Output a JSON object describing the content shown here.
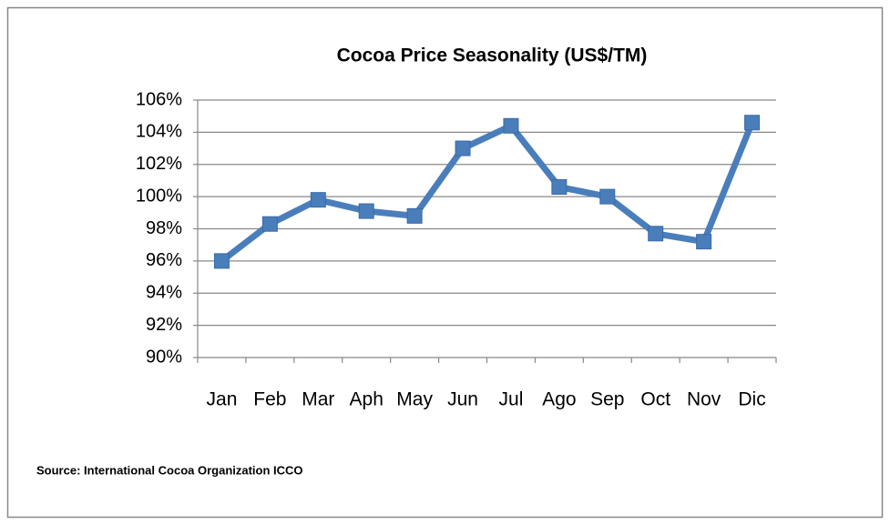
{
  "chart_data": {
    "type": "line",
    "title": "Cocoa Price Seasonality (US$/TM)",
    "source": "Source: International Cocoa Organization ICCO",
    "categories": [
      "Jan",
      "Feb",
      "Mar",
      "Aph",
      "May",
      "Jun",
      "Jul",
      "Ago",
      "Sep",
      "Oct",
      "Nov",
      "Dic"
    ],
    "values": [
      96.0,
      98.3,
      99.8,
      99.1,
      98.8,
      103.0,
      104.4,
      100.6,
      100.0,
      97.7,
      97.2,
      104.6
    ],
    "color": "#4a7ebb",
    "ylim": [
      90,
      106
    ],
    "yticks": [
      {
        "value": 90,
        "label": "90%"
      },
      {
        "value": 92,
        "label": "92%"
      },
      {
        "value": 94,
        "label": "94%"
      },
      {
        "value": 96,
        "label": "96%"
      },
      {
        "value": 98,
        "label": "98%"
      },
      {
        "value": 100,
        "label": "100%"
      },
      {
        "value": 102,
        "label": "102%"
      },
      {
        "value": 104,
        "label": "104%"
      },
      {
        "value": 106,
        "label": "106%"
      }
    ],
    "grid": true
  }
}
